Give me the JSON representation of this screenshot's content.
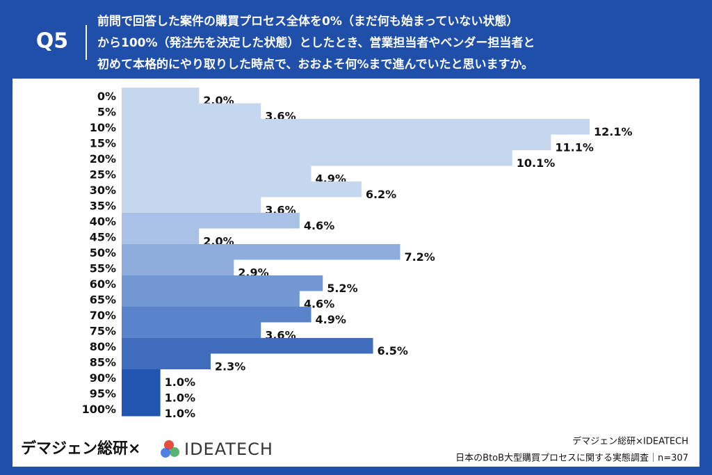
{
  "chart_data": {
    "type": "barh",
    "question": "Q5",
    "title": [
      "前問で回答した案件の購買プロセス全体を0%（まだ何も始まっていない状態）",
      "から100%（発注先を決定した状態）としたとき、営業担当者やベンダー担当者と",
      "初めて本格的にやり取りした時点で、おおよそ何%まで進んでいたと思いますか。"
    ],
    "categories": [
      "0%",
      "5%",
      "10%",
      "15%",
      "20%",
      "25%",
      "30%",
      "35%",
      "40%",
      "45%",
      "50%",
      "55%",
      "60%",
      "65%",
      "70%",
      "75%",
      "80%",
      "85%",
      "90%",
      "95%",
      "100%"
    ],
    "values": [
      2.0,
      3.6,
      12.1,
      11.1,
      10.1,
      4.9,
      6.2,
      3.6,
      4.6,
      2.0,
      7.2,
      2.9,
      5.2,
      4.6,
      4.9,
      3.6,
      6.5,
      2.3,
      1.0,
      1.0,
      1.0
    ],
    "value_labels": [
      "2.0%",
      "3.6%",
      "12.1%",
      "11.1%",
      "10.1%",
      "4.9%",
      "6.2%",
      "3.6%",
      "4.6%",
      "2.0%",
      "7.2%",
      "2.9%",
      "5.2%",
      "4.6%",
      "4.9%",
      "3.6%",
      "6.5%",
      "2.3%",
      "1.0%",
      "1.0%",
      "1.0%"
    ],
    "colors": [
      "#c5d6ef",
      "#c5d6ef",
      "#c5d6ef",
      "#c5d6ef",
      "#c5d6ef",
      "#c5d6ef",
      "#c5d6ef",
      "#c5d6ef",
      "#a9c1e6",
      "#a9c1e6",
      "#8eaddd",
      "#8eaddd",
      "#7298d3",
      "#7298d3",
      "#5a84c9",
      "#5a84c9",
      "#3f6cbd",
      "#3f6cbd",
      "#2255b0",
      "#2255b0",
      "#2255b0"
    ]
  },
  "footer": {
    "brand": "デマジェン総研×",
    "logo": "IDEATECH",
    "source": [
      "デマジェン総研×IDEATECH",
      "日本のBtoB大型購買プロセスに関する実態調査｜n=307"
    ]
  }
}
